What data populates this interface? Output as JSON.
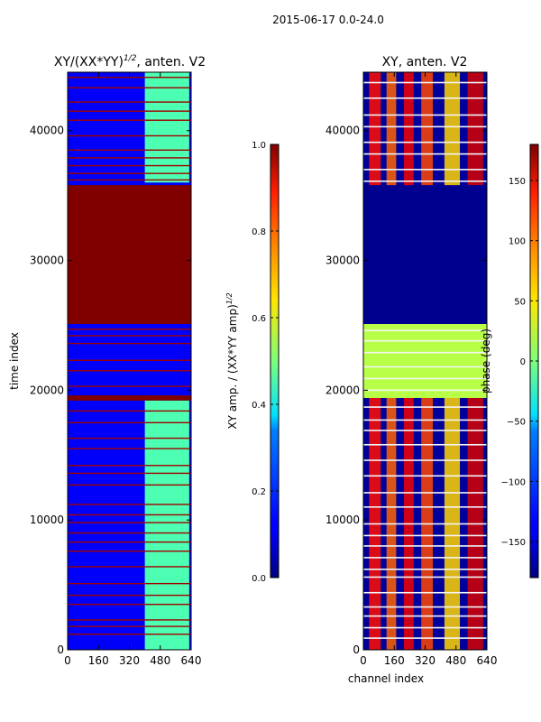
{
  "figure": {
    "suptitle": "2015-06-17 0.0-24.0"
  },
  "chart_data": [
    {
      "type": "heatmap",
      "title": "XY/(XX*YY)",
      "title_exponent": "1/2",
      "title_suffix": ", anten. V2",
      "xlabel": "",
      "ylabel": "time index",
      "xlim": [
        0,
        640
      ],
      "ylim": [
        0,
        44500
      ],
      "x_ticks": [
        0,
        160,
        320,
        480,
        640
      ],
      "y_ticks": [
        0,
        10000,
        20000,
        30000,
        40000
      ],
      "x_tick_labels": [
        "0",
        "160",
        "320",
        "480",
        "640"
      ],
      "y_tick_labels": [
        "0",
        "10000",
        "20000",
        "30000",
        "40000"
      ],
      "colormap": "jet",
      "colorbar": {
        "label": "XY amp. / (XX*YY amp)",
        "label_exponent": "1/2",
        "range": [
          0.0,
          1.0
        ],
        "ticks": [
          0.0,
          0.2,
          0.4,
          0.6,
          0.8,
          1.0
        ],
        "tick_labels": [
          "0.0",
          "0.2",
          "0.4",
          "0.6",
          "0.8",
          "1.0"
        ]
      },
      "regions": [
        {
          "x": [
            0,
            640
          ],
          "y": [
            0,
            44500
          ],
          "value": 0.12,
          "label": "background"
        },
        {
          "x": [
            0,
            640
          ],
          "y": [
            25100,
            35800
          ],
          "value": 1.0,
          "label": "saturated block"
        },
        {
          "x": [
            0,
            640
          ],
          "y": [
            19200,
            19600
          ],
          "value": 1.0,
          "label": "saturated band"
        },
        {
          "x": [
            400,
            630
          ],
          "y": [
            0,
            19200
          ],
          "value": 0.45,
          "label": "high-amplitude channels"
        },
        {
          "x": [
            400,
            630
          ],
          "y": [
            36000,
            44500
          ],
          "value": 0.45,
          "label": "high-amplitude channels"
        }
      ],
      "band_rows": [
        1200,
        1800,
        2300,
        3500,
        4200,
        5100,
        6400,
        7600,
        8300,
        9000,
        9800,
        10400,
        11200,
        12700,
        13600,
        14200,
        15500,
        16300,
        17500,
        18400,
        20300,
        21500,
        22300,
        23600,
        24200,
        24700,
        36200,
        36700,
        37300,
        37900,
        38500,
        39600,
        40800,
        41500,
        42200,
        43300,
        44100
      ]
    },
    {
      "type": "heatmap",
      "title": "XY, anten. V2",
      "xlabel": "channel index",
      "ylabel": "",
      "xlim": [
        0,
        640
      ],
      "ylim": [
        0,
        44500
      ],
      "x_ticks": [
        0,
        160,
        320,
        480,
        640
      ],
      "y_ticks": [
        0,
        10000,
        20000,
        30000,
        40000
      ],
      "x_tick_labels": [
        "0",
        "160",
        "320",
        "480",
        "640"
      ],
      "y_tick_labels": [
        "0",
        "10000",
        "20000",
        "30000",
        "40000"
      ],
      "colormap": "jet",
      "colorbar": {
        "label": "phase (deg)",
        "range": [
          -180,
          180
        ],
        "ticks": [
          -150,
          -100,
          -50,
          0,
          50,
          100,
          150
        ],
        "tick_labels": [
          "−150",
          "−100",
          "−50",
          "0",
          "50",
          "100",
          "150"
        ]
      },
      "regions": [
        {
          "x": [
            0,
            640
          ],
          "y": [
            0,
            44500
          ],
          "value": -170,
          "label": "background"
        },
        {
          "x": [
            0,
            640
          ],
          "y": [
            25100,
            35800
          ],
          "value": -175,
          "label": "flat block"
        },
        {
          "x": [
            0,
            640
          ],
          "y": [
            19400,
            25100
          ],
          "value": 20,
          "label": "green bands"
        }
      ],
      "phase_stripes": [
        {
          "x": [
            30,
            90
          ],
          "value": 130
        },
        {
          "x": [
            120,
            170
          ],
          "value": 100
        },
        {
          "x": [
            210,
            260
          ],
          "value": 140
        },
        {
          "x": [
            300,
            360
          ],
          "value": 110
        },
        {
          "x": [
            420,
            500
          ],
          "value": 60
        },
        {
          "x": [
            540,
            620
          ],
          "value": 150
        }
      ],
      "band_rows": [
        900,
        1700,
        2600,
        3300,
        4400,
        5600,
        6200,
        7100,
        8000,
        8800,
        9700,
        11000,
        12100,
        13400,
        14600,
        15800,
        16900,
        17700,
        18700,
        20000,
        20900,
        21800,
        22900,
        23800,
        24600,
        36100,
        37000,
        38200,
        39100,
        40300,
        41200,
        42500,
        43700
      ]
    }
  ]
}
